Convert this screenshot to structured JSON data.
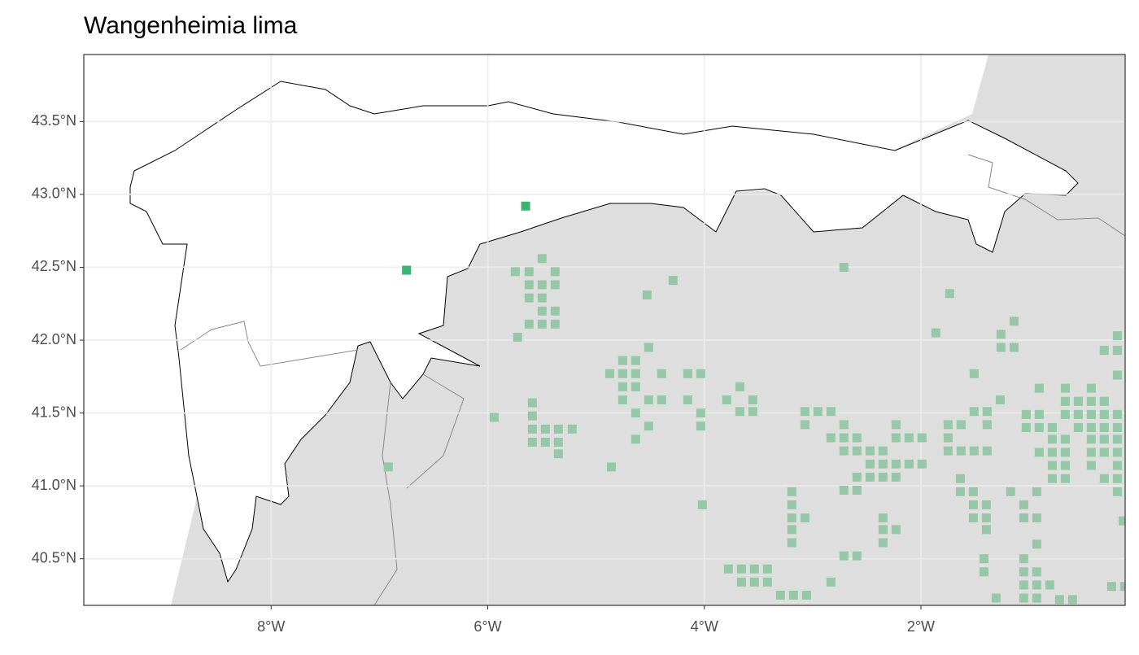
{
  "chart_data": {
    "type": "scatter",
    "title": "Wangenheimia lima",
    "xlim": [
      -9.73,
      -0.114
    ],
    "ylim": [
      40.18,
      43.96
    ],
    "xticks": [
      {
        "value": -8,
        "label": "8°W"
      },
      {
        "value": -6,
        "label": "6°W"
      },
      {
        "value": -4,
        "label": "4°W"
      },
      {
        "value": -2,
        "label": "2°W"
      }
    ],
    "yticks": [
      {
        "value": 40.5,
        "label": "40.5°N"
      },
      {
        "value": 41.0,
        "label": "41.0°N"
      },
      {
        "value": 41.5,
        "label": "41.5°N"
      },
      {
        "value": 42.0,
        "label": "42.0°N"
      },
      {
        "value": 42.5,
        "label": "42.5°N"
      },
      {
        "value": 43.0,
        "label": "43.0°N"
      },
      {
        "value": 43.5,
        "label": "43.5°N"
      }
    ],
    "grid": true,
    "series": [
      {
        "color": "#96c8a8",
        "x": [
          -5.746,
          -5.618,
          -5.498,
          -5.378,
          -5.618,
          -5.498,
          -5.378,
          -5.618,
          -5.498,
          -5.498,
          -5.378,
          -5.618,
          -5.498,
          -5.378,
          -5.724,
          -5.588,
          -5.588,
          -5.588,
          -5.468,
          -5.348,
          -5.22,
          -5.588,
          -5.468,
          -5.348,
          -5.348,
          -5.941,
          -6.918,
          -4.859,
          -4.754,
          -4.634,
          -4.874,
          -4.754,
          -4.634,
          -4.754,
          -4.634,
          -4.754,
          -4.514,
          -4.514,
          -4.394,
          -4.634,
          -4.514,
          -4.634,
          -4.394,
          -4.529,
          -4.289,
          -2.711,
          -4.153,
          -4.033,
          -4.153,
          -4.033,
          -4.033,
          -4.018,
          -3.672,
          -3.793,
          -3.552,
          -3.672,
          -3.552,
          -3.778,
          -3.657,
          -3.537,
          -3.417,
          -3.657,
          -3.537,
          -3.417,
          -3.297,
          -3.177,
          -3.056,
          -3.192,
          -3.192,
          -3.192,
          -3.071,
          -3.192,
          -3.192,
          -3.071,
          -2.951,
          -2.831,
          -3.071,
          -2.711,
          -2.831,
          -2.711,
          -2.591,
          -2.711,
          -2.591,
          -2.47,
          -2.35,
          -2.47,
          -2.35,
          -2.23,
          -2.11,
          -1.99,
          -2.591,
          -2.47,
          -2.35,
          -2.23,
          -2.711,
          -2.591,
          -2.23,
          -2.23,
          -2.11,
          -1.99,
          -2.35,
          -2.35,
          -2.23,
          -2.35,
          -2.711,
          -2.591,
          -2.831,
          -1.734,
          -1.862,
          -1.749,
          -1.629,
          -1.749,
          -1.749,
          -1.629,
          -1.509,
          -1.389,
          -1.509,
          -1.389,
          -1.389,
          -1.509,
          -1.268,
          -1.636,
          -1.636,
          -1.516,
          -1.516,
          -1.516,
          -1.396,
          -1.396,
          -1.396,
          -1.418,
          -1.418,
          -1.261,
          -1.14,
          -1.261,
          -1.14,
          -0.908,
          -1.028,
          -0.908,
          -1.028,
          -0.908,
          -0.787,
          -0.667,
          -0.667,
          -0.667,
          -0.547,
          -0.547,
          -0.547,
          -0.427,
          -0.427,
          -0.427,
          -0.307,
          -0.307,
          -0.307,
          -0.186,
          -0.186,
          -0.427,
          -0.186,
          -0.307,
          -0.186,
          -0.186,
          -0.787,
          -0.667,
          -0.427,
          -0.307,
          -0.186,
          -0.908,
          -0.787,
          -0.667,
          -0.427,
          -0.307,
          -0.186,
          -0.787,
          -0.667,
          -0.427,
          -0.186,
          -0.787,
          -0.667,
          -0.307,
          -0.186,
          -0.186,
          -1.171,
          -1.05,
          -0.93,
          -1.05,
          -0.93,
          -0.93,
          -1.05,
          -0.93,
          -1.05,
          -1.05,
          -0.93,
          -0.81,
          -1.05,
          -0.93,
          -1.306,
          -0.72,
          -0.6,
          -0.239,
          -0.119,
          -0.134
        ],
        "values": [
          42.47,
          42.47,
          42.56,
          42.47,
          42.38,
          42.38,
          42.38,
          42.29,
          42.29,
          42.2,
          42.2,
          42.11,
          42.11,
          42.11,
          42.02,
          41.57,
          41.48,
          41.39,
          41.39,
          41.39,
          41.39,
          41.3,
          41.3,
          41.3,
          41.22,
          41.47,
          41.13,
          41.13,
          41.86,
          41.86,
          41.77,
          41.77,
          41.77,
          41.68,
          41.68,
          41.59,
          41.95,
          41.59,
          41.59,
          41.5,
          41.41,
          41.32,
          41.77,
          42.31,
          42.41,
          42.5,
          41.77,
          41.77,
          41.59,
          41.5,
          41.41,
          40.87,
          41.68,
          41.59,
          41.59,
          41.51,
          41.51,
          40.43,
          40.43,
          40.43,
          40.43,
          40.34,
          40.34,
          40.34,
          40.25,
          40.25,
          40.25,
          40.96,
          40.87,
          40.78,
          40.78,
          40.7,
          40.61,
          41.51,
          41.51,
          41.51,
          41.42,
          41.42,
          41.33,
          41.33,
          41.33,
          41.24,
          41.24,
          41.24,
          41.24,
          41.15,
          41.15,
          41.15,
          41.15,
          41.15,
          41.06,
          41.06,
          41.06,
          41.06,
          40.97,
          40.97,
          41.42,
          41.33,
          41.33,
          41.33,
          40.78,
          40.7,
          40.7,
          40.61,
          40.52,
          40.52,
          40.34,
          42.32,
          42.05,
          41.42,
          41.42,
          41.33,
          41.24,
          41.24,
          41.24,
          41.24,
          41.51,
          41.51,
          41.42,
          41.77,
          41.59,
          41.05,
          40.96,
          40.96,
          40.87,
          40.78,
          40.78,
          40.7,
          40.87,
          40.5,
          40.41,
          42.04,
          42.13,
          41.95,
          41.95,
          41.67,
          41.49,
          41.49,
          41.4,
          41.4,
          41.4,
          41.67,
          41.58,
          41.49,
          41.58,
          41.49,
          41.4,
          41.67,
          41.58,
          41.49,
          41.58,
          41.49,
          41.4,
          41.49,
          41.4,
          41.4,
          42.03,
          41.93,
          41.93,
          41.76,
          41.32,
          41.32,
          41.32,
          41.32,
          41.32,
          41.23,
          41.23,
          41.23,
          41.23,
          41.23,
          41.23,
          41.14,
          41.14,
          41.14,
          41.14,
          41.05,
          41.05,
          41.05,
          41.05,
          40.96,
          40.96,
          40.87,
          40.96,
          40.78,
          40.78,
          40.6,
          40.5,
          40.41,
          40.41,
          40.32,
          40.32,
          40.32,
          40.23,
          40.23,
          40.23,
          40.22,
          40.22,
          40.31,
          40.31,
          40.76
        ]
      },
      {
        "color": "#3cb371",
        "x": [
          -5.65,
          -6.75
        ],
        "values": [
          42.92,
          42.48
        ]
      }
    ]
  }
}
